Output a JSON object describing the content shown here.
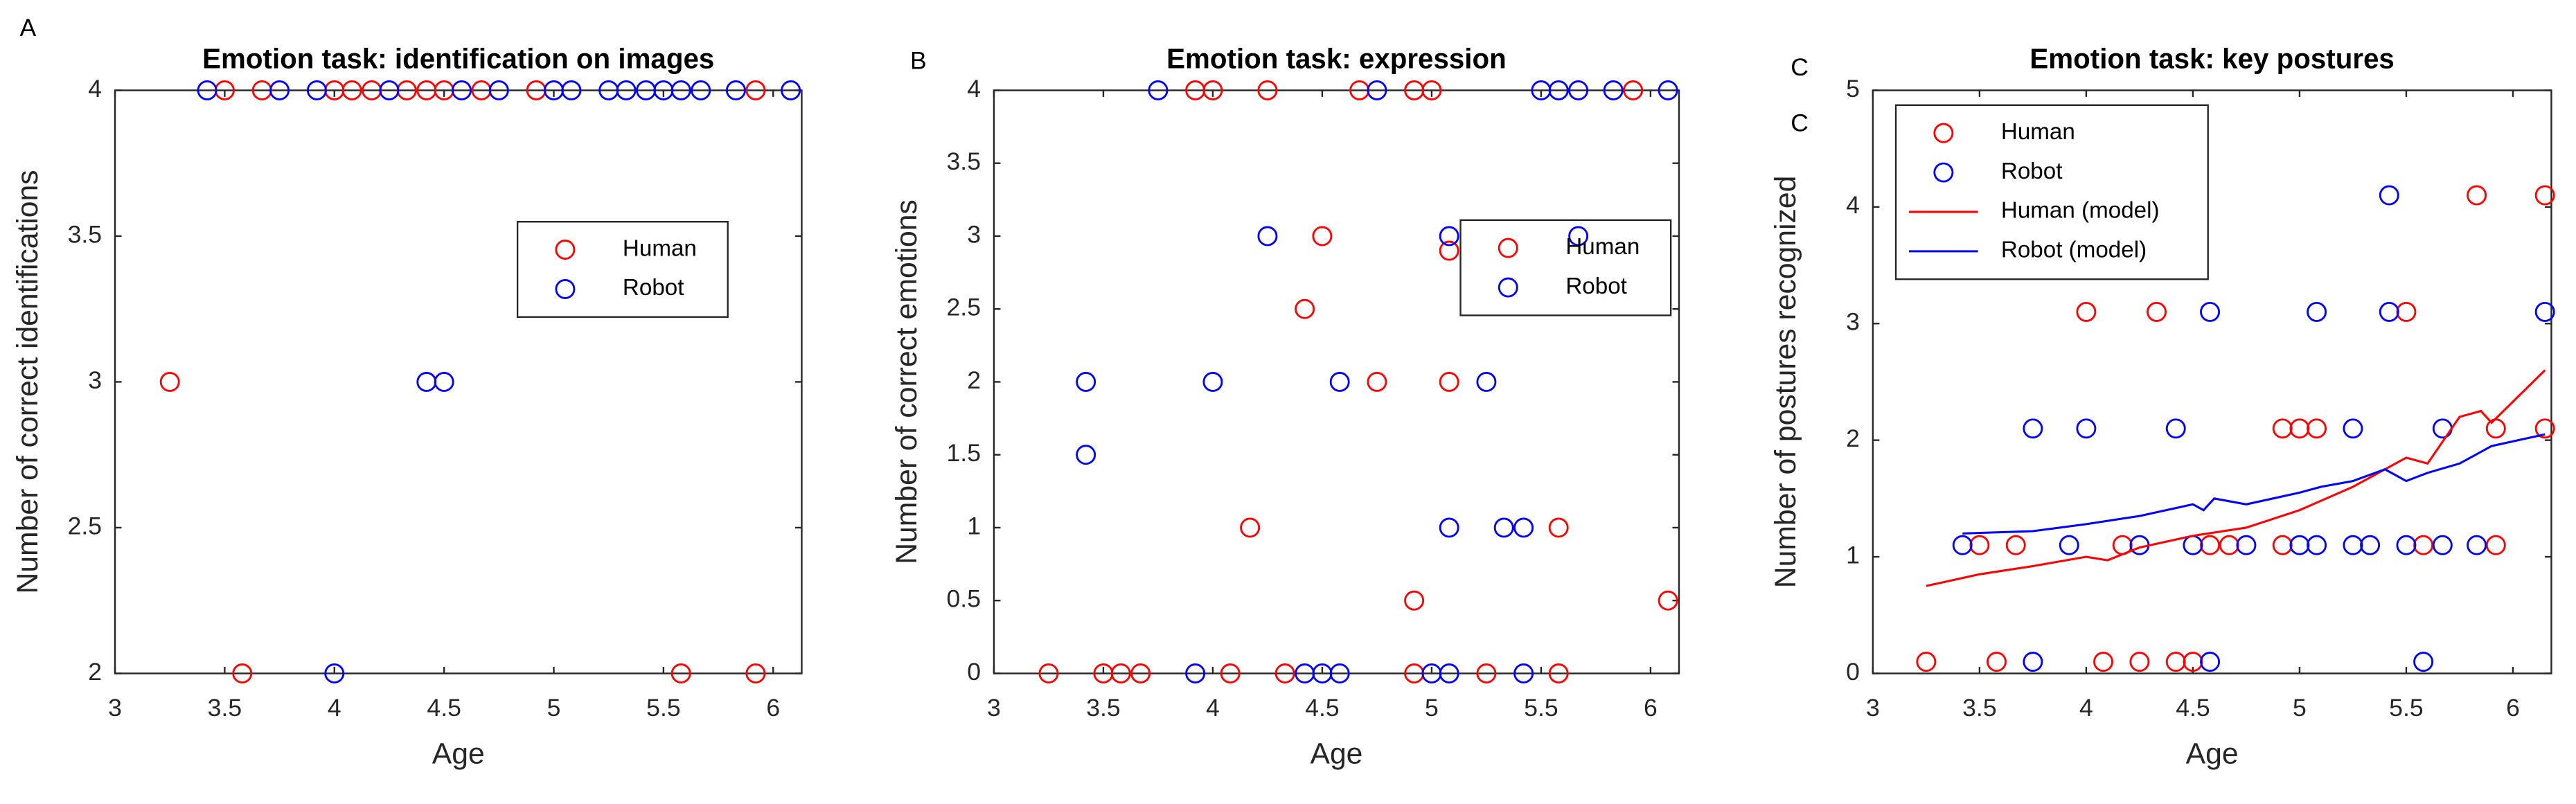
{
  "chart_data": [
    {
      "type": "scatter",
      "panel_labels": [
        "A"
      ],
      "title": "Emotion task: identification on images",
      "x_label": "Age",
      "y_label": "Number of correct identifications",
      "xlim": [
        3,
        6.13
      ],
      "xticks": [
        3,
        3.5,
        4,
        4.5,
        5,
        5.5,
        6
      ],
      "ylim": [
        2,
        4
      ],
      "yticks": [
        2,
        2.5,
        3,
        3.5,
        4
      ],
      "grid": false,
      "legend": "right",
      "series": [
        {
          "name": "Human",
          "color": "#ff0000",
          "mode": "markers",
          "x": [
            3.25,
            3.58,
            3.5,
            3.67,
            4,
            4.08,
            4.17,
            4.33,
            4.42,
            4.5,
            4.67,
            4.92,
            5.58,
            5.92,
            5.92
          ],
          "values": [
            3,
            2,
            4,
            4,
            4,
            4,
            4,
            4,
            4,
            4,
            4,
            4,
            2,
            2,
            4
          ]
        },
        {
          "name": "Robot",
          "color": "#0000ff",
          "mode": "markers",
          "x": [
            3.42,
            3.75,
            3.92,
            4,
            4.25,
            4.42,
            4.5,
            4.58,
            4.75,
            5,
            5.08,
            5.25,
            5.33,
            5.42,
            5.5,
            5.58,
            5.67,
            5.83,
            6.08
          ],
          "values": [
            4,
            4,
            4,
            2,
            4,
            3,
            3,
            4,
            4,
            4,
            4,
            4,
            4,
            4,
            4,
            4,
            4,
            4,
            4
          ]
        }
      ]
    },
    {
      "type": "scatter",
      "panel_labels": [
        "B"
      ],
      "title": "Emotion task: expression",
      "x_label": "Age",
      "y_label": "Number of correct emotions",
      "xlim": [
        3,
        6.13
      ],
      "xticks": [
        3,
        3.5,
        4,
        4.5,
        5,
        5.5,
        6
      ],
      "ylim": [
        0,
        4
      ],
      "yticks": [
        0,
        0.5,
        1,
        1.5,
        2,
        2.5,
        3,
        3.5,
        4
      ],
      "grid": false,
      "legend": "upper right",
      "series": [
        {
          "name": "Human",
          "color": "#ff0000",
          "mode": "markers",
          "x": [
            3.25,
            3.5,
            3.58,
            3.67,
            3.92,
            4,
            4.08,
            4.17,
            4.25,
            4.33,
            4.42,
            4.5,
            4.67,
            4.75,
            4.92,
            4.92,
            4.92,
            5,
            5.08,
            5.08,
            5.25,
            5.58,
            5.58,
            5.92,
            6.08
          ],
          "values": [
            0,
            0,
            0,
            0,
            4,
            4,
            0,
            1,
            4,
            0,
            2.5,
            3,
            4,
            2,
            0.5,
            0,
            4,
            4,
            2,
            2.9,
            0,
            0,
            1,
            4,
            0.5
          ]
        },
        {
          "name": "Robot",
          "color": "#0000ff",
          "mode": "markers",
          "x": [
            3.42,
            3.42,
            3.75,
            3.92,
            4,
            4.25,
            4.42,
            4.5,
            4.58,
            4.58,
            4.75,
            5,
            5.08,
            5.08,
            5.08,
            5.25,
            5.33,
            5.42,
            5.42,
            5.5,
            5.58,
            5.67,
            5.67,
            5.83,
            6.08
          ],
          "values": [
            2,
            1.5,
            4,
            0,
            2,
            3,
            0,
            0,
            0,
            2,
            4,
            0,
            0,
            1,
            3,
            2,
            1,
            1,
            0,
            4,
            4,
            4,
            3,
            4,
            4
          ]
        }
      ]
    },
    {
      "type": "scatter",
      "panel_labels": [
        "C",
        "C"
      ],
      "title": "Emotion task: key postures",
      "x_label": "Age",
      "y_label": "Number of postures recognized",
      "xlim": [
        3,
        6.18
      ],
      "xticks": [
        3,
        3.5,
        4,
        4.5,
        5,
        5.5,
        6
      ],
      "ylim": [
        0,
        5
      ],
      "yticks": [
        0,
        1,
        2,
        3,
        4,
        5
      ],
      "grid": false,
      "legend": "upper left",
      "series": [
        {
          "name": "Human",
          "color": "#ff0000",
          "mode": "markers",
          "x": [
            3.25,
            3.5,
            3.58,
            3.67,
            4,
            4.08,
            4.17,
            4.25,
            4.33,
            4.42,
            4.5,
            4.58,
            4.67,
            4.92,
            4.92,
            5,
            5.08,
            5.5,
            5.58,
            5.83,
            5.92,
            5.92,
            6.15,
            6.15
          ],
          "values": [
            0.1,
            1.1,
            0.1,
            1.1,
            3.1,
            0.1,
            1.1,
            0.1,
            3.1,
            0.1,
            0.1,
            1.1,
            1.1,
            2.1,
            1.1,
            2.1,
            2.1,
            3.1,
            1.1,
            4.1,
            2.1,
            1.1,
            4.1,
            2.1
          ]
        },
        {
          "name": "Robot",
          "color": "#0000ff",
          "mode": "markers",
          "x": [
            3.42,
            3.75,
            3.75,
            3.92,
            4,
            4.25,
            4.42,
            4.5,
            4.58,
            4.58,
            4.75,
            5,
            5.08,
            5.08,
            5.25,
            5.25,
            5.33,
            5.42,
            5.42,
            5.5,
            5.58,
            5.67,
            5.67,
            5.83,
            6.15
          ],
          "values": [
            1.1,
            2.1,
            0.1,
            1.1,
            2.1,
            1.1,
            2.1,
            1.1,
            3.1,
            0.1,
            1.1,
            1.1,
            3.1,
            1.1,
            2.1,
            1.1,
            1.1,
            4.1,
            3.1,
            1.1,
            0.1,
            2.1,
            1.1,
            1.1,
            3.1
          ]
        },
        {
          "name": "Human (model)",
          "color": "#ff0000",
          "mode": "line",
          "x": [
            3.25,
            3.5,
            3.75,
            4,
            4.1,
            4.25,
            4.5,
            4.75,
            5,
            5.25,
            5.5,
            5.6,
            5.75,
            5.85,
            5.9,
            6.15
          ],
          "values": [
            0.75,
            0.85,
            0.92,
            1.0,
            0.97,
            1.08,
            1.18,
            1.25,
            1.4,
            1.6,
            1.85,
            1.8,
            2.2,
            2.25,
            2.15,
            2.6
          ]
        },
        {
          "name": "Robot (model)",
          "color": "#0000ff",
          "mode": "line",
          "x": [
            3.42,
            3.75,
            4,
            4.25,
            4.5,
            4.55,
            4.6,
            4.75,
            5,
            5.1,
            5.25,
            5.4,
            5.5,
            5.6,
            5.75,
            5.9,
            6.15
          ],
          "values": [
            1.2,
            1.22,
            1.28,
            1.35,
            1.45,
            1.4,
            1.5,
            1.45,
            1.55,
            1.6,
            1.65,
            1.75,
            1.65,
            1.72,
            1.8,
            1.95,
            2.05
          ]
        }
      ]
    }
  ]
}
